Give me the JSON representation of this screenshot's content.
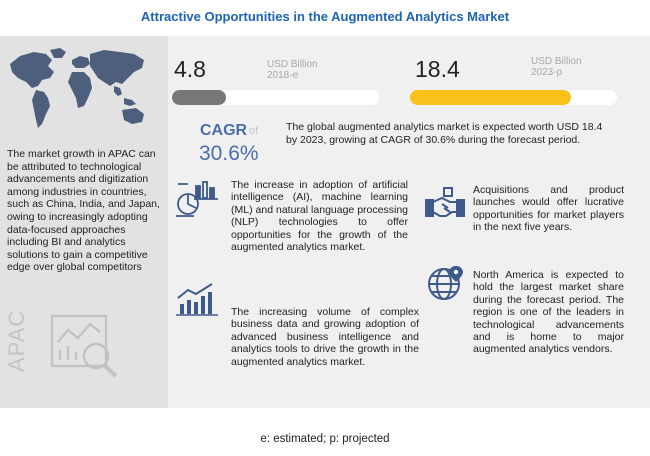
{
  "title": "Attractive Opportunities in the Augmented Analytics Market",
  "apac": {
    "text": "The market growth in APAC can be attributed to technological advancements and digitization among industries in countries, such as China, India, and Japan, owing to increasingly adopting data-focused approaches including BI and analytics solutions to gain a competitive edge over global competitors",
    "label": "APAC",
    "map_icon": "world-map-icon",
    "analytics_icon": "analytics-report-icon"
  },
  "market": {
    "value_2018": "4.8",
    "unit_2018_line1": "USD Billion",
    "unit_2018_line2": "2018-e",
    "value_2023": "18.4",
    "unit_2023_line1": "USD Billion",
    "unit_2023_line2": "2023-p",
    "bar_2018_fraction": 0.26,
    "bar_2023_fraction": 0.78,
    "bar_2018_color": "#777777",
    "bar_2023_color": "#f9c21a"
  },
  "cagr": {
    "label": "CAGR",
    "of": "of",
    "value": "30.6%",
    "text": "The global augmented analytics market is expected worth USD 18.4 by 2023, growing at CAGR of 30.6% during the forecast period."
  },
  "blocks": {
    "nlp": "The increase in adoption of artificial intelligence (AI), machine learning (ML) and natural language processing (NLP) technologies to offer opportunities for the growth of the augmented analytics market.",
    "data_volume": "The increasing volume of complex business data and growing adoption of advanced business intelligence and analytics tools to drive the growth in the augmented analytics market.",
    "acquisitions": "Acquisitions and product launches would offer lucrative opportunities for market players in the next five years.",
    "north_america": "North America is expected to hold the largest market share during the forecast period. The region is one of the leaders in technological advancements and is home to major augmented analytics vendors."
  },
  "icons": {
    "ai": "ai-analytics-icon",
    "growth": "growth-chart-icon",
    "handshake": "handshake-icon",
    "globe": "globe-location-icon"
  },
  "footnote": "e: estimated; p: projected"
}
